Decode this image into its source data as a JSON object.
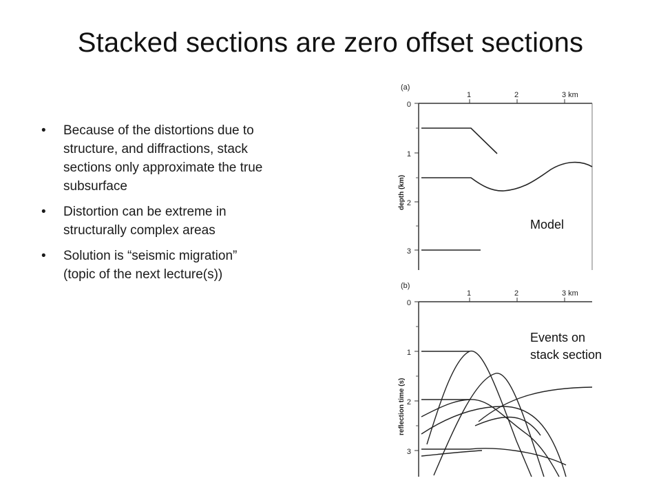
{
  "slide": {
    "title": "Stacked sections are zero offset sections",
    "bullets": [
      "Because of the distortions due to structure, and diffractions, stack sections only approximate the true subsurface",
      "Distortion can be extreme in structurally complex areas",
      "Solution is “seismic migration” (topic of the next lecture(s))"
    ],
    "bullet_symbol": "•"
  },
  "figure": {
    "panel_a": {
      "tag": "(a)",
      "x_ticks": [
        "1",
        "2",
        "3 km"
      ],
      "y_ticks": [
        "0",
        "1",
        "2",
        "3"
      ],
      "y_label": "depth (km)",
      "caption": "Model"
    },
    "panel_b": {
      "tag": "(b)",
      "x_ticks": [
        "1",
        "2",
        "3 km"
      ],
      "y_ticks": [
        "0",
        "1",
        "2",
        "3"
      ],
      "y_label": "reflection time (s)",
      "caption_line1": "Events on",
      "caption_line2": "stack section"
    }
  }
}
